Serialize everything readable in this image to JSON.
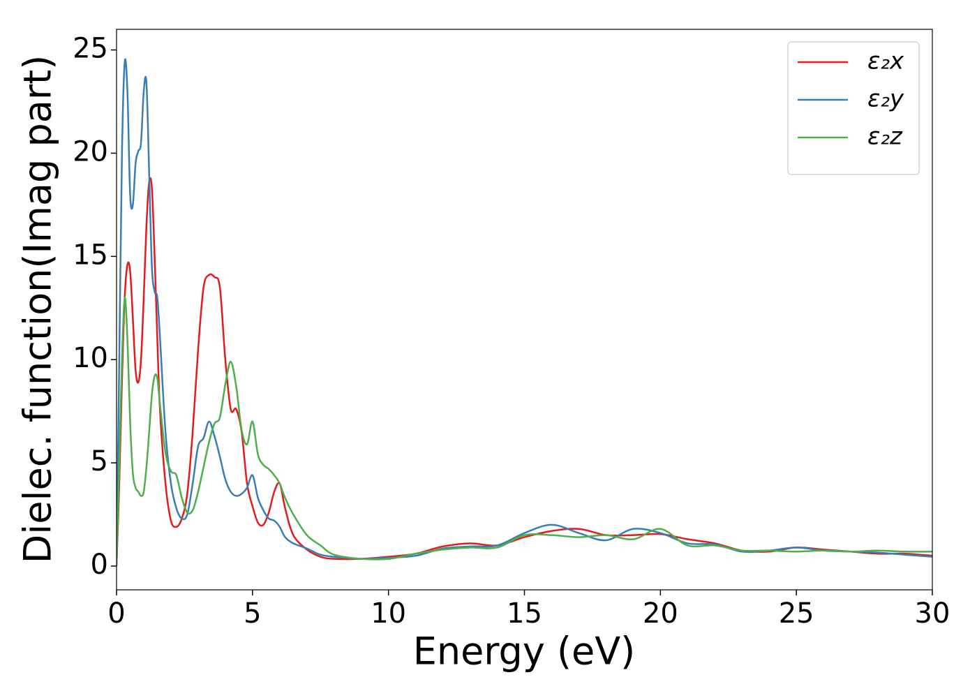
{
  "chart_data": {
    "type": "line",
    "xlabel": "Energy (eV)",
    "ylabel": "Dielec. function(Imag part)",
    "x": [
      0,
      0.1,
      0.2,
      0.3,
      0.4,
      0.5,
      0.6,
      0.7,
      0.8,
      0.9,
      1.0,
      1.1,
      1.2,
      1.3,
      1.4,
      1.5,
      1.6,
      1.8,
      2.0,
      2.2,
      2.4,
      2.6,
      2.8,
      3.0,
      3.2,
      3.4,
      3.6,
      3.8,
      4.0,
      4.2,
      4.4,
      4.6,
      4.8,
      5.0,
      5.2,
      5.4,
      5.6,
      5.8,
      6.0,
      6.2,
      6.5,
      7,
      7.5,
      8,
      9,
      10,
      11,
      12,
      13,
      14,
      15,
      16,
      17,
      18,
      19,
      20,
      21,
      22,
      23,
      24,
      25,
      26,
      27,
      28,
      29,
      30
    ],
    "series": [
      {
        "name": "ε₂x",
        "color": "#e41a1c",
        "values": [
          0,
          4,
          9,
          13,
          14.6,
          14.3,
          12,
          9.5,
          8.9,
          10,
          13,
          16.5,
          18.6,
          18.3,
          15,
          11,
          7.5,
          4,
          2.2,
          1.9,
          2.3,
          3.5,
          6.5,
          10.5,
          13.5,
          14.1,
          14.0,
          13.5,
          10,
          7.6,
          7.6,
          6.5,
          4,
          2.9,
          2.1,
          2,
          2.6,
          3.6,
          4.0,
          2.8,
          1.5,
          0.8,
          0.45,
          0.35,
          0.35,
          0.45,
          0.6,
          0.95,
          1.1,
          1.0,
          1.4,
          1.7,
          1.8,
          1.5,
          1.5,
          1.55,
          1.3,
          1.1,
          0.75,
          0.7,
          0.9,
          0.8,
          0.7,
          0.6,
          0.6,
          0.5
        ]
      },
      {
        "name": "ε₂y",
        "color": "#377eb8",
        "values": [
          0,
          10,
          20,
          24.4,
          23,
          18,
          17.5,
          19.5,
          20.1,
          20.5,
          23,
          23.4,
          19,
          14.5,
          13.3,
          13,
          11,
          6.5,
          4,
          2.8,
          2.3,
          2.5,
          4,
          5.8,
          6.2,
          7.0,
          6.3,
          5.3,
          4.2,
          3.6,
          3.4,
          3.5,
          3.8,
          4.4,
          3.3,
          2.7,
          2.3,
          2.2,
          1.9,
          1.4,
          1.1,
          0.85,
          0.55,
          0.45,
          0.35,
          0.4,
          0.5,
          0.85,
          0.95,
          1.0,
          1.6,
          2.0,
          1.6,
          1.25,
          1.8,
          1.6,
          1.1,
          1.05,
          0.7,
          0.75,
          0.9,
          0.75,
          0.7,
          0.65,
          0.55,
          0.45
        ]
      },
      {
        "name": "ε₂z",
        "color": "#4daf4a",
        "values": [
          0,
          5,
          10,
          13,
          11,
          7,
          4.5,
          3.8,
          3.6,
          3.4,
          3.6,
          4.8,
          6.5,
          8.3,
          9.2,
          9.1,
          7.8,
          5.5,
          4.6,
          4.4,
          3.3,
          2.6,
          2.7,
          3.6,
          4.8,
          6.0,
          6.9,
          7.2,
          8.8,
          9.9,
          8.7,
          6.6,
          5.9,
          7.0,
          5.4,
          4.9,
          4.7,
          4.4,
          4.0,
          3.3,
          2.5,
          1.5,
          1.0,
          0.55,
          0.35,
          0.35,
          0.6,
          0.8,
          0.9,
          0.9,
          1.5,
          1.5,
          1.4,
          1.5,
          1.3,
          1.8,
          1.0,
          1.0,
          0.75,
          0.75,
          0.7,
          0.75,
          0.7,
          0.75,
          0.7,
          0.7
        ]
      }
    ],
    "xlim": [
      0,
      30
    ],
    "xticks": [
      0,
      5,
      10,
      15,
      20,
      25,
      30
    ],
    "ylim": [
      -1.15,
      26.0
    ],
    "yticks": [
      0,
      5,
      10,
      15,
      20,
      25
    ],
    "legend": "upper right"
  }
}
